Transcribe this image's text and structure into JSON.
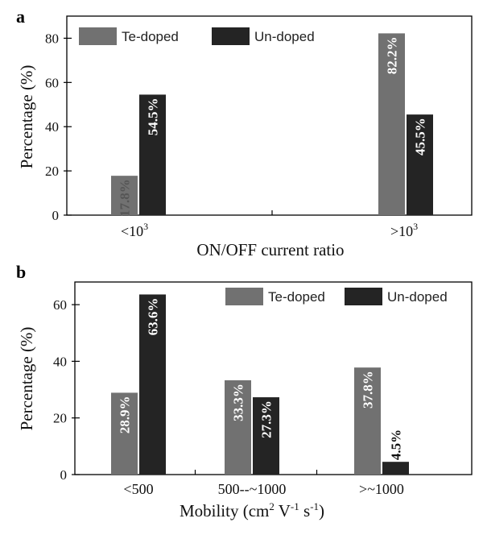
{
  "colors": {
    "te": "#717171",
    "un": "#242424",
    "label_on_light": "#555555",
    "label_on_dark": "#ffffff",
    "label_outside": "#111111"
  },
  "chart_data": [
    {
      "panel": "a",
      "type": "bar",
      "xlabel": "ON/OFF current ratio",
      "ylabel": "Percentage (%)",
      "ylim": [
        0,
        90
      ],
      "yticks": [
        0,
        20,
        40,
        60,
        80
      ],
      "categories": [
        {
          "prefix": "<10",
          "sup": "3"
        },
        {
          "prefix": ">10",
          "sup": "3"
        }
      ],
      "series": [
        {
          "name": "Te-doped",
          "values": [
            17.8,
            82.2
          ],
          "labels": [
            "17.8%",
            "82.2%"
          ]
        },
        {
          "name": "Un-doped",
          "values": [
            54.5,
            45.5
          ],
          "labels": [
            "54.5%",
            "45.5%"
          ]
        }
      ],
      "legend": "top"
    },
    {
      "panel": "b",
      "type": "bar",
      "xlabel_parts": {
        "base": "Mobility (cm",
        "s1": "2",
        "m1": " V",
        "s2": "-1",
        "m2": " s",
        "s3": "-1",
        "end": ")"
      },
      "ylabel": "Percentage (%)",
      "ylim": [
        0,
        68
      ],
      "yticks": [
        0,
        20,
        40,
        60
      ],
      "categories": [
        "<500",
        "500--~1000",
        ">~1000"
      ],
      "series": [
        {
          "name": "Te-doped",
          "values": [
            28.9,
            33.3,
            37.8
          ],
          "labels": [
            "28.9%",
            "33.3%",
            "37.8%"
          ]
        },
        {
          "name": "Un-doped",
          "values": [
            63.6,
            27.3,
            4.5
          ],
          "labels": [
            "63.6%",
            "27.3%",
            "4.5%"
          ]
        }
      ],
      "legend": "top-right"
    }
  ]
}
